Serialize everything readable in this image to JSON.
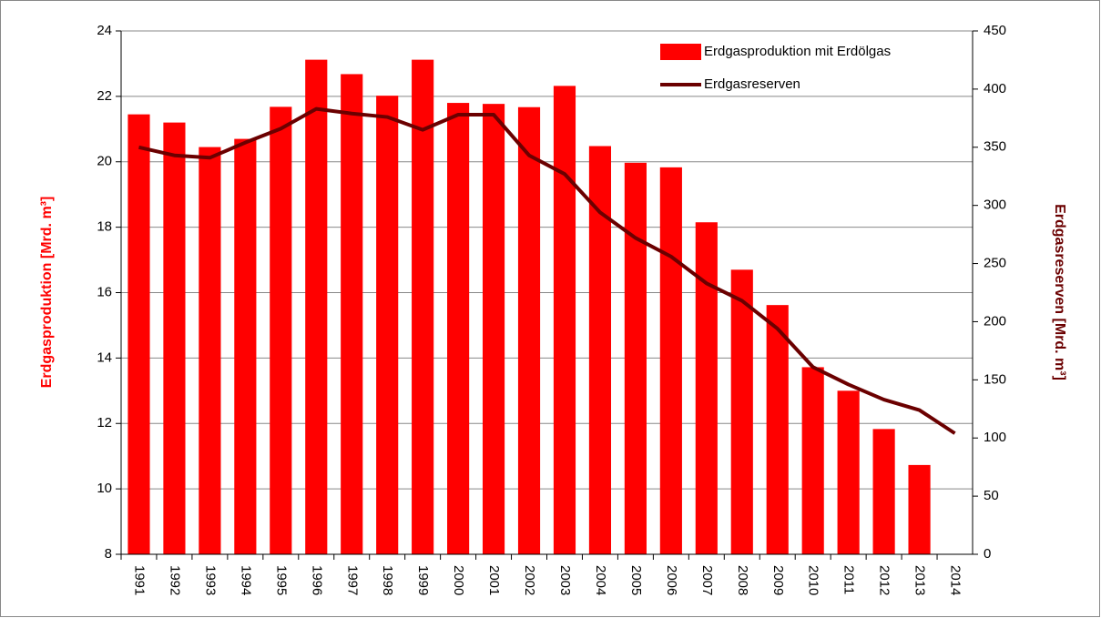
{
  "chart_data": {
    "type": "bar-line",
    "y_label": "Erdgasproduktion [Mrd. m³]",
    "y2_label": "Erdgasreserven [Mrd. m³]",
    "categories": [
      "1991",
      "1992",
      "1993",
      "1994",
      "1995",
      "1996",
      "1997",
      "1998",
      "1999",
      "2000",
      "2001",
      "2002",
      "2003",
      "2004",
      "2005",
      "2006",
      "2007",
      "2008",
      "2009",
      "2010",
      "2011",
      "2012",
      "2013",
      "2014"
    ],
    "series": [
      {
        "name": "Erdgasproduktion mit Erdölgas",
        "type": "bar",
        "color": "#ff0000",
        "values": [
          21.45,
          21.2,
          20.45,
          20.7,
          21.68,
          23.12,
          22.68,
          22.02,
          23.12,
          21.8,
          21.77,
          21.67,
          22.32,
          20.48,
          19.97,
          19.83,
          18.15,
          16.7,
          15.62,
          13.72,
          13.0,
          11.83,
          10.73,
          null
        ]
      },
      {
        "name": "Erdgasreserven",
        "type": "line",
        "axis": "y2",
        "color": "#6b0000",
        "values": [
          350,
          343,
          341,
          354,
          366,
          383,
          379,
          376,
          365,
          378,
          378,
          343,
          327,
          294,
          272,
          256,
          233,
          218,
          194,
          161,
          146,
          133,
          124,
          104
        ]
      }
    ],
    "ylim": [
      8,
      24
    ],
    "yticks": [
      8,
      10,
      12,
      14,
      16,
      18,
      20,
      22,
      24
    ],
    "y2lim": [
      0,
      450
    ],
    "y2ticks": [
      0,
      50,
      100,
      150,
      200,
      250,
      300,
      350,
      400,
      450
    ],
    "grid": true,
    "legend": "top-right"
  }
}
